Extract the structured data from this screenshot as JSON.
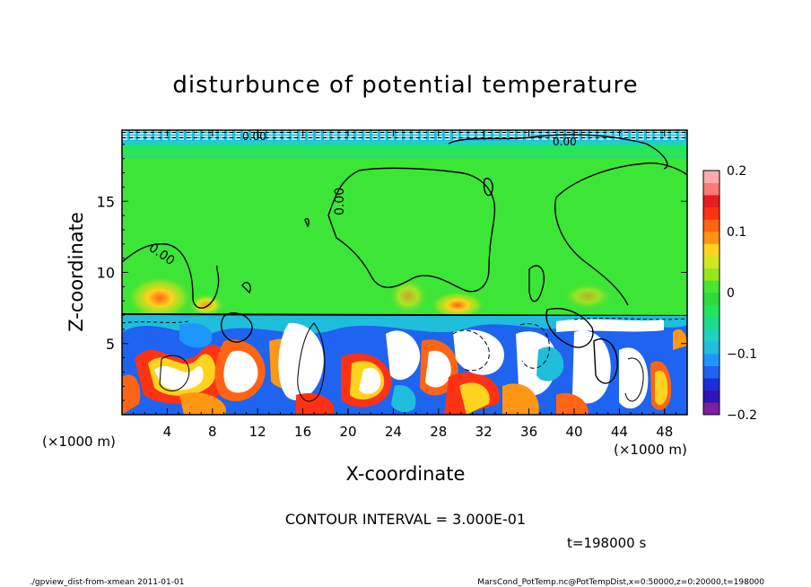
{
  "chart_data": {
    "type": "heatmap",
    "title": "disturbunce of potential temperature",
    "xlabel": "X-coordinate",
    "ylabel": "Z-coordinate",
    "x_unit": "(×1000 m)",
    "y_unit": "(×1000 m)",
    "xlim": [
      0,
      50
    ],
    "ylim": [
      0,
      20
    ],
    "x_ticks": [
      4,
      8,
      12,
      16,
      20,
      24,
      28,
      32,
      36,
      40,
      44,
      48
    ],
    "y_ticks": [
      5,
      10,
      15
    ],
    "colorbar": {
      "range": [
        -0.2,
        0.2
      ],
      "tick_labels": [
        "0.2",
        "0.1",
        "0",
        "−0.1",
        "−0.2"
      ],
      "tick_values": [
        0.2,
        0.1,
        0,
        -0.1,
        -0.2
      ],
      "colors": [
        "#7d1fa0",
        "#3214b4",
        "#1a2fd8",
        "#1e64f0",
        "#1e96ff",
        "#1ebedc",
        "#1ed2be",
        "#1edc8c",
        "#23e65a",
        "#2ddc3c",
        "#46e632",
        "#96e61e",
        "#d2e61e",
        "#ffd21e",
        "#ff9614",
        "#ff6414",
        "#ff3214",
        "#e61e1e",
        "#ff7878",
        "#ffaaaa"
      ]
    },
    "contour_labels": [
      "0.00",
      "0.00",
      "0.00",
      "0.00"
    ],
    "contour_interval_text": "CONTOUR INTERVAL = 3.000E-01",
    "time_label": "t=198000 s",
    "footer_left": "./gpview_dist-from-xmean   2011-01-01",
    "footer_right": "MarsCond_PotTemp.nc@PotTempDist,x=0:50000,z=0:20000,t=198000",
    "regions": {
      "upper_layer_value": 0.0,
      "warm_spots": [
        {
          "x": 3.5,
          "z": 9.0,
          "value": 0.11
        },
        {
          "x": 29.5,
          "z": 8.0,
          "value": 0.12
        },
        {
          "x": 7.0,
          "z": 8.5,
          "value": 0.07
        }
      ],
      "inversion_height": 7.0,
      "top_band_value": -0.05
    }
  }
}
